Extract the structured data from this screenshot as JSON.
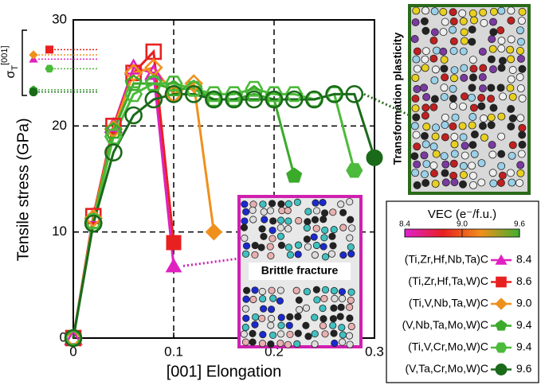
{
  "chart_data": {
    "type": "line",
    "x_label": "[001] Elongation",
    "y_label": "Tensile stress (GPa)",
    "xlim": [
      0,
      0.3
    ],
    "ylim": [
      0,
      30
    ],
    "xticks": [
      0,
      0.1,
      0.2,
      0.3
    ],
    "yticks": [
      0,
      10,
      20,
      30
    ],
    "grid": true,
    "ideal_strength_symbol": "σ",
    "ideal_strength_sub": "T",
    "ideal_strength_sup": "[001]",
    "annotations": [
      "Transformation plasticity",
      "Brittle fracture"
    ],
    "legend_title": "VEC (e⁻/f.u.)",
    "colorbar": {
      "clim": [
        8.4,
        9.6
      ],
      "ticks": [
        8.4,
        {
          "value": 9.0,
          "label": "9.0"
        },
        9.6
      ],
      "colors": [
        "#e020d0",
        "#e82020",
        "#f0901c",
        "#40b030"
      ]
    },
    "series": [
      {
        "name": "(Ti,Zr,Hf,Nb,Ta)C",
        "vec": "8.4",
        "marker": "triangle",
        "color": "#e020c0",
        "ideal_strength": 26.3,
        "x": [
          0,
          0.02,
          0.04,
          0.06,
          0.08,
          0.1
        ],
        "values": [
          0,
          11.5,
          20,
          25.5,
          25,
          6.8
        ]
      },
      {
        "name": "(Ti,Zr,Hf,Ta,W)C",
        "vec": "8.6",
        "marker": "square",
        "color": "#e82020",
        "ideal_strength": 27.2,
        "x": [
          0,
          0.02,
          0.04,
          0.06,
          0.08,
          0.1
        ],
        "values": [
          0,
          11.5,
          20,
          25,
          27,
          9
        ]
      },
      {
        "name": "(Ti,V,Nb,Ta,W)C",
        "vec": "9.0",
        "marker": "diamond",
        "color": "#f0901c",
        "ideal_strength": 26.7,
        "x": [
          0,
          0.02,
          0.04,
          0.06,
          0.08,
          0.1,
          0.12,
          0.14
        ],
        "values": [
          0,
          11.3,
          19.7,
          25,
          25.5,
          23,
          24,
          10
        ]
      },
      {
        "name": "(V,Nb,Ta,Mo,W)C",
        "vec": "9.4",
        "marker": "pentagon",
        "color": "#3aaa2a",
        "ideal_strength": 23.4,
        "x": [
          0,
          0.02,
          0.04,
          0.06,
          0.08,
          0.1,
          0.12,
          0.14,
          0.16,
          0.18,
          0.2,
          0.22
        ],
        "values": [
          0,
          11,
          19.5,
          24,
          24,
          23.5,
          23.5,
          22.5,
          22.5,
          23,
          22.5,
          15.3
        ]
      },
      {
        "name": "(Ti,V,Cr,Mo,W)C",
        "vec": "9.4",
        "marker": "hexagon",
        "color": "#4cba3a",
        "ideal_strength": 25.4,
        "x": [
          0,
          0.02,
          0.04,
          0.06,
          0.08,
          0.1,
          0.12,
          0.14,
          0.16,
          0.18,
          0.2,
          0.22,
          0.24,
          0.26,
          0.28
        ],
        "values": [
          0,
          11,
          19,
          23,
          24,
          24,
          23.5,
          23,
          23,
          23.5,
          23,
          23,
          22.5,
          23,
          15.8
        ]
      },
      {
        "name": "(V,Ta,Cr,Mo,W)C",
        "vec": "9.6",
        "marker": "circle",
        "color": "#1a6a1a",
        "ideal_strength": 23.2,
        "x": [
          0,
          0.02,
          0.04,
          0.06,
          0.08,
          0.1,
          0.12,
          0.14,
          0.16,
          0.18,
          0.2,
          0.22,
          0.24,
          0.26,
          0.28,
          0.3
        ],
        "values": [
          0,
          10.8,
          17.5,
          21,
          22.5,
          23,
          23,
          22.5,
          22.5,
          22.5,
          22.5,
          22.5,
          22.5,
          23,
          23,
          17
        ]
      }
    ]
  }
}
